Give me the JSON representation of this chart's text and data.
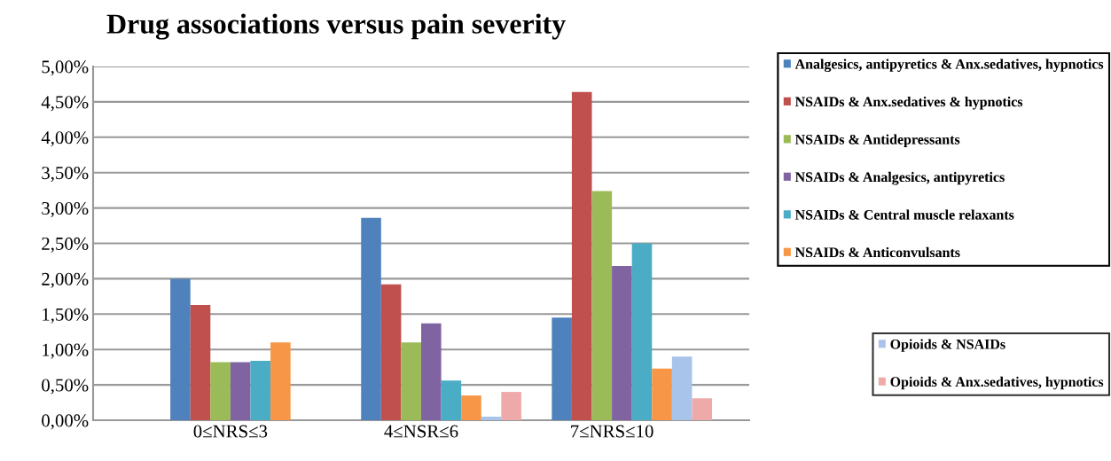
{
  "chart_data": {
    "type": "bar",
    "title": "Drug associations versus pain severity",
    "categories": [
      "0≤NRS≤3",
      "4≤NSR≤6",
      "7≤NRS≤10"
    ],
    "series": [
      {
        "name": "Analgesics, antipyretics & Anx.sedatives, hypnotics",
        "color": "#4f81bd",
        "values": [
          2.0,
          2.86,
          1.45
        ]
      },
      {
        "name": "NSAIDs & Anx.sedatives & hypnotics",
        "color": "#c0504d",
        "values": [
          1.63,
          1.92,
          4.64
        ]
      },
      {
        "name": "NSAIDs & Antidepressants",
        "color": "#9bbb59",
        "values": [
          0.82,
          1.1,
          3.24
        ]
      },
      {
        "name": "NSAIDs & Analgesics, antipyretics",
        "color": "#8064a2",
        "values": [
          0.82,
          1.37,
          2.18
        ]
      },
      {
        "name": "NSAIDs & Central muscle relaxants",
        "color": "#4bacc6",
        "values": [
          0.84,
          0.56,
          2.5
        ]
      },
      {
        "name": "NSAIDs & Anticonvulsants",
        "color": "#f79646",
        "values": [
          1.1,
          0.35,
          0.73
        ]
      },
      {
        "name": "Opioids & NSAIDs",
        "color": "#a9c4eb",
        "values": [
          0,
          0.05,
          0.9
        ]
      },
      {
        "name": "Opioids & Anx.sedatives, hypnotics",
        "color": "#eeaaa8",
        "values": [
          0,
          0.4,
          0.31
        ]
      }
    ],
    "ylim": [
      0,
      5
    ],
    "yticks": [
      {
        "value": 0,
        "label": "0,00%"
      },
      {
        "value": 0.5,
        "label": "0,50%"
      },
      {
        "value": 1,
        "label": "1,00%"
      },
      {
        "value": 1.5,
        "label": "1,50%"
      },
      {
        "value": 2,
        "label": "2,00%"
      },
      {
        "value": 2.5,
        "label": "2,50%"
      },
      {
        "value": 3,
        "label": "3,00%"
      },
      {
        "value": 3.5,
        "label": "3,50%"
      },
      {
        "value": 4,
        "label": "4,00%"
      },
      {
        "value": 4.5,
        "label": "4,50%"
      },
      {
        "value": 5,
        "label": "5,00%"
      }
    ],
    "grid": "y",
    "legend": "right"
  }
}
